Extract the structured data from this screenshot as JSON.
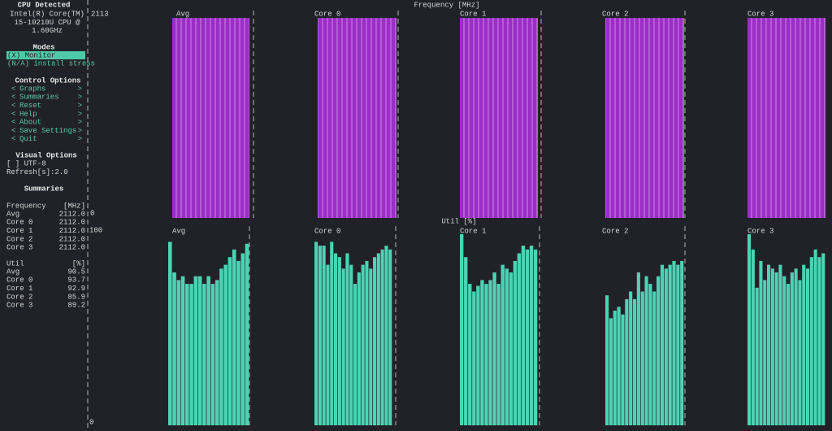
{
  "sidebar": {
    "cpu_heading": "CPU Detected",
    "cpu_lines": [
      "Intel(R) Core(TM)",
      "i5-10210U CPU @",
      "1.60GHz"
    ],
    "modes_heading": "Modes",
    "modes": [
      "(X) Monitor",
      "(N/A) install stress"
    ],
    "control_heading": "Control Options",
    "control_open": "<",
    "control_close": ">",
    "controls": [
      "Graphs",
      "Summaries",
      "Reset",
      "Help",
      "About",
      "Save Settings",
      "Quit"
    ],
    "visual_heading": "Visual Options",
    "visual": [
      "[ ] UTF-8",
      "Refresh[s]:2.0"
    ],
    "summaries_heading": "Summaries",
    "freq_summary": {
      "title": "Frequency",
      "unit": "[MHz]",
      "rows": [
        [
          "Avg",
          "2112.0"
        ],
        [
          "Core 0",
          "2112.0"
        ],
        [
          "Core 1",
          "2112.0"
        ],
        [
          "Core 2",
          "2112.0"
        ],
        [
          "Core 3",
          "2112.0"
        ]
      ]
    },
    "util_summary": {
      "title": "Util",
      "unit": "[%]",
      "rows": [
        [
          "Avg",
          "90.5"
        ],
        [
          "Core 0",
          "93.7"
        ],
        [
          "Core 1",
          "92.9"
        ],
        [
          "Core 2",
          "85.9"
        ],
        [
          "Core 3",
          "89.2"
        ]
      ]
    }
  },
  "frequency_graph": {
    "title": "Frequency [MHz]",
    "ymax": 2113,
    "ymin": 0,
    "panels": [
      "Avg",
      "Core 0",
      "Core 1",
      "Core 2",
      "Core 3"
    ]
  },
  "util_graph": {
    "title": "Util [%]",
    "ymax": 100,
    "ymin": 0,
    "panels": [
      {
        "name": "Avg",
        "values": [
          96,
          80,
          76,
          78,
          74,
          74,
          78,
          78,
          74,
          78,
          74,
          76,
          82,
          84,
          88,
          92,
          86,
          90,
          95
        ]
      },
      {
        "name": "Core 0",
        "values": [
          96,
          94,
          94,
          84,
          96,
          90,
          88,
          82,
          90,
          84,
          74,
          80,
          84,
          86,
          82,
          88,
          90,
          92,
          94,
          92
        ]
      },
      {
        "name": "Core 1",
        "values": [
          100,
          88,
          74,
          70,
          73,
          76,
          74,
          76,
          80,
          74,
          84,
          82,
          80,
          86,
          90,
          94,
          92,
          94,
          92
        ]
      },
      {
        "name": "Core 2",
        "values": [
          68,
          56,
          60,
          62,
          58,
          66,
          70,
          66,
          80,
          70,
          78,
          74,
          70,
          78,
          84,
          82,
          84,
          86,
          84,
          86
        ]
      },
      {
        "name": "Core 3",
        "values": [
          100,
          92,
          72,
          86,
          76,
          84,
          82,
          80,
          84,
          78,
          74,
          80,
          82,
          76,
          84,
          82,
          88,
          92,
          88,
          90
        ]
      }
    ]
  }
}
